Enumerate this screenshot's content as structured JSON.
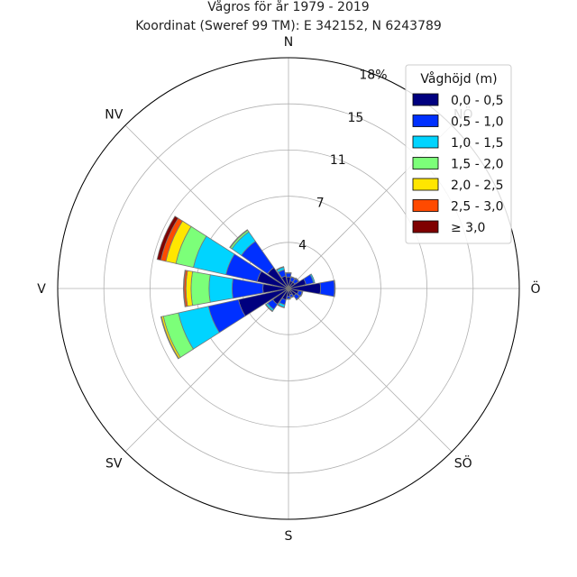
{
  "chart_data": {
    "type": "windrose",
    "title": "Vågros för år 1979 - 2019",
    "subtitle": "Koordinat (Sweref 99 TM): E 342152, N 6243789",
    "directions": [
      {
        "label": "N",
        "angle": 0
      },
      {
        "label": "NV",
        "angle": 315
      },
      {
        "label": "V",
        "angle": 270
      },
      {
        "label": "SV",
        "angle": 225
      },
      {
        "label": "S",
        "angle": 180
      },
      {
        "label": "SÖ",
        "angle": 135
      },
      {
        "label": "Ö",
        "angle": 90
      },
      {
        "label": "NÖ",
        "angle": 45
      }
    ],
    "radial_ticks": [
      "4",
      "7",
      "11",
      "15",
      "18%"
    ],
    "radial_tick_values": [
      3.6,
      7.2,
      10.8,
      14.4,
      18.0
    ],
    "rmax": 18.0,
    "sector_width_deg": 20,
    "legend_title": "Våghöjd (m)",
    "legend_location": "top-right",
    "colors": [
      "#00007f",
      "#0030ff",
      "#00d4ff",
      "#7cff79",
      "#ffe600",
      "#ff4a00",
      "#7f0000"
    ],
    "classes": [
      "0,0 - 0,5",
      "0,5 - 1,0",
      "1,0 - 1,5",
      "1,5 - 2,0",
      "2,0 - 2,5",
      "2,5 - 3,0",
      "≥ 3,0"
    ],
    "sectors": [
      {
        "dir": 0,
        "cumulative": [
          0.9,
          1.2,
          1.25,
          1.25,
          1.25,
          1.25,
          1.25
        ]
      },
      {
        "dir": 22.5,
        "cumulative": [
          0.6,
          0.9,
          0.95,
          0.95,
          0.95,
          0.95,
          0.95
        ]
      },
      {
        "dir": 45,
        "cumulative": [
          0.6,
          0.95,
          1.0,
          1.0,
          1.0,
          1.0,
          1.0
        ]
      },
      {
        "dir": 67.5,
        "cumulative": [
          1.4,
          2.0,
          2.1,
          2.1,
          2.1,
          2.1,
          2.1
        ]
      },
      {
        "dir": 90,
        "cumulative": [
          2.5,
          3.6,
          3.65,
          3.65,
          3.65,
          3.65,
          3.65
        ]
      },
      {
        "dir": 112.5,
        "cumulative": [
          0.8,
          1.1,
          1.15,
          1.15,
          1.15,
          1.15,
          1.15
        ]
      },
      {
        "dir": 135,
        "cumulative": [
          0.7,
          1.05,
          1.1,
          1.1,
          1.1,
          1.1,
          1.1
        ]
      },
      {
        "dir": 157.5,
        "cumulative": [
          0.5,
          0.7,
          0.75,
          0.75,
          0.75,
          0.75,
          0.75
        ]
      },
      {
        "dir": 180,
        "cumulative": [
          0.6,
          0.8,
          0.85,
          0.85,
          0.85,
          0.85,
          0.85
        ]
      },
      {
        "dir": 202.5,
        "cumulative": [
          0.9,
          1.3,
          1.5,
          1.55,
          1.55,
          1.55,
          1.55
        ]
      },
      {
        "dir": 225,
        "cumulative": [
          1.5,
          2.0,
          2.15,
          2.2,
          2.2,
          2.2,
          2.2
        ]
      },
      {
        "dir": 247.5,
        "cumulative": [
          4.0,
          6.4,
          8.8,
          10.0,
          10.15,
          10.2,
          10.2
        ]
      },
      {
        "dir": 270,
        "cumulative": [
          2.0,
          4.4,
          6.2,
          7.6,
          8.0,
          8.15,
          8.2
        ]
      },
      {
        "dir": 292.5,
        "cumulative": [
          2.5,
          5.0,
          7.6,
          9.0,
          9.8,
          10.2,
          10.5
        ]
      },
      {
        "dir": 315,
        "cumulative": [
          2.0,
          4.5,
          5.4,
          5.55,
          5.6,
          5.6,
          5.6
        ]
      },
      {
        "dir": 337.5,
        "cumulative": [
          1.0,
          1.5,
          1.7,
          1.75,
          1.75,
          1.75,
          1.75
        ]
      }
    ]
  }
}
